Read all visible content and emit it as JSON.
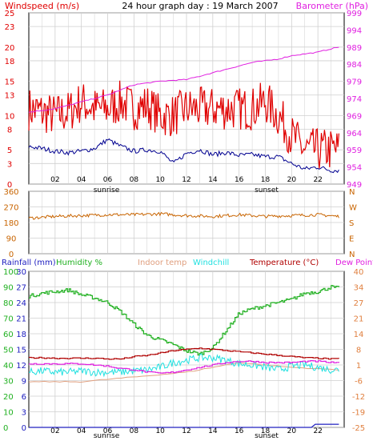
{
  "header": {
    "left": "Windspeed (m/s)",
    "center": "24 hour graph day : 19 March 2007",
    "right": "Barometer (hPa)"
  },
  "colors": {
    "wind": "#e00000",
    "barometer": "#e020e0",
    "gust_low": "#000090",
    "wind_dir": "#c86400",
    "rain": "#2020c0",
    "humidity": "#20b020",
    "indoor": "#e0a080",
    "windchill": "#20e0e0",
    "temperature": "#b00000",
    "dewpoint": "#e020e0",
    "grid": "#cfcfcf"
  },
  "x_ticks": [
    "02",
    "04",
    "06",
    "08",
    "10",
    "12",
    "14",
    "16",
    "18",
    "20",
    "22"
  ],
  "sun_labels": {
    "sunrise": "sunrise",
    "sunset": "sunset"
  },
  "legend3": {
    "rainfall": "Rainfall (mm)",
    "humidity": "Humidity %",
    "indoor": "Indoor temp",
    "windchill": "Windchill",
    "temperature": "Temperature (°C)",
    "dewpoint": "Dew Point"
  },
  "chart_data": [
    {
      "type": "line",
      "title": "24 hour graph day : 19 March 2007",
      "xlabel": "",
      "ylabel": "Windspeed (m/s)",
      "y2label": "Barometer (hPa)",
      "x_range": [
        0,
        24
      ],
      "ylim": [
        0,
        25
      ],
      "y2lim": [
        949,
        999
      ],
      "y_ticks": [
        0,
        3,
        5,
        8,
        10,
        13,
        15,
        18,
        20,
        23,
        25
      ],
      "y2_ticks": [
        949,
        954,
        959,
        964,
        969,
        974,
        979,
        984,
        989,
        994,
        999
      ],
      "series": [
        {
          "name": "Windspeed (m/s)",
          "axis": "left",
          "x": [
            0,
            1,
            2,
            3,
            4,
            5,
            6,
            7,
            8,
            9,
            10,
            11,
            12,
            13,
            14,
            15,
            16,
            17,
            18,
            19,
            20,
            21,
            22,
            23,
            23.6
          ],
          "values": [
            11,
            10.5,
            10,
            10.5,
            12,
            11,
            11,
            12,
            11,
            11.5,
            10,
            10,
            11,
            11,
            11,
            11,
            11,
            11,
            12,
            10,
            7,
            5,
            5,
            5,
            5
          ]
        },
        {
          "name": "",
          "axis": "left",
          "x": [
            0,
            1,
            2,
            3,
            4,
            5,
            6,
            7,
            8,
            9,
            10,
            11,
            12,
            13,
            14,
            15,
            16,
            17,
            18,
            19,
            20,
            21,
            22,
            23,
            23.6
          ],
          "values": [
            5.5,
            5.2,
            4.8,
            4.6,
            4.8,
            5.2,
            6.5,
            5.5,
            4.8,
            5,
            4.8,
            3,
            4.5,
            5,
            4.3,
            4.6,
            4.2,
            4.3,
            4,
            4,
            3,
            2.2,
            2.5,
            2,
            2
          ]
        },
        {
          "name": "Barometer (hPa)",
          "axis": "right",
          "x": [
            0,
            1,
            2,
            3,
            4,
            5,
            6,
            7,
            8,
            9,
            10,
            11,
            12,
            13,
            14,
            15,
            16,
            17,
            18,
            19,
            20,
            21,
            22,
            23,
            23.6
          ],
          "values": [
            970,
            970.5,
            971,
            972,
            973,
            974,
            975,
            976.5,
            978,
            978.5,
            979,
            979.3,
            979.5,
            980.5,
            981.5,
            982.5,
            983.5,
            984.5,
            985,
            985.5,
            986.5,
            987,
            987.5,
            988.5,
            989
          ]
        }
      ]
    },
    {
      "type": "line",
      "title": "",
      "ylabel": "",
      "x_range": [
        0,
        24
      ],
      "ylim": [
        0,
        360
      ],
      "y_ticks": [
        0,
        90,
        180,
        270,
        360
      ],
      "y2_ticks": [
        "N",
        "S",
        "E",
        "W",
        "N"
      ],
      "series": [
        {
          "name": "",
          "x": [
            0,
            2,
            4,
            6,
            8,
            10,
            12,
            14,
            16,
            18,
            20,
            22,
            23.6
          ],
          "values": [
            205,
            215,
            220,
            225,
            225,
            230,
            220,
            215,
            225,
            215,
            220,
            225,
            215
          ]
        }
      ]
    },
    {
      "type": "line",
      "title": "",
      "x_range": [
        0,
        24
      ],
      "ylim": [
        0,
        100
      ],
      "y_ticks_humidity": [
        0,
        10,
        20,
        30,
        40,
        50,
        60,
        70,
        80,
        90,
        100
      ],
      "y_ticks_rain": [
        0,
        3,
        6,
        9,
        12,
        15,
        18,
        21,
        24,
        27,
        30
      ],
      "y2_ticks_temp": [
        -25,
        -19,
        -12,
        -6,
        1,
        8,
        14,
        21,
        27,
        34,
        40
      ],
      "series": [
        {
          "name": "Humidity %",
          "axis": "humidity",
          "x": [
            0,
            1,
            2,
            3,
            4,
            5,
            6,
            7,
            8,
            9,
            10,
            11,
            12,
            13,
            14,
            15,
            16,
            17,
            18,
            19,
            20,
            21,
            22,
            23,
            23.6
          ],
          "values": [
            84,
            86,
            87,
            88,
            85,
            83,
            80,
            74,
            66,
            59,
            56,
            53,
            49,
            47,
            51,
            62,
            73,
            76,
            78,
            80,
            82,
            86,
            87,
            90,
            89
          ]
        },
        {
          "name": "Temperature (°C)",
          "axis": "temp",
          "x": [
            0,
            1,
            2,
            3,
            4,
            5,
            6,
            7,
            8,
            9,
            10,
            11,
            12,
            13,
            14,
            15,
            16,
            17,
            18,
            19,
            20,
            21,
            22,
            23,
            23.6
          ],
          "values": [
            4,
            4,
            3.8,
            3.8,
            3.8,
            3.8,
            3.5,
            3.5,
            4.5,
            5,
            6,
            7,
            7.5,
            8,
            7.5,
            7,
            6.5,
            6,
            5.5,
            5,
            4.5,
            4,
            3.8,
            3.5,
            3.5
          ]
        },
        {
          "name": "Windchill",
          "axis": "temp",
          "x": [
            0,
            1,
            2,
            3,
            4,
            5,
            6,
            7,
            8,
            9,
            10,
            11,
            12,
            13,
            14,
            15,
            16,
            17,
            18,
            19,
            20,
            21,
            22,
            23,
            23.6
          ],
          "values": [
            -2,
            -1.5,
            -2,
            -2,
            -1.5,
            -2,
            -2,
            -2,
            -1.5,
            -1,
            0,
            2,
            3,
            4,
            4,
            3,
            1.5,
            1,
            0,
            -1,
            0.5,
            1,
            0,
            -1,
            -1
          ]
        },
        {
          "name": "Dew Point",
          "axis": "temp",
          "x": [
            0,
            1,
            2,
            3,
            4,
            5,
            6,
            7,
            8,
            9,
            10,
            11,
            12,
            13,
            14,
            15,
            16,
            17,
            18,
            19,
            20,
            21,
            22,
            23,
            23.6
          ],
          "values": [
            1.5,
            1.5,
            1.5,
            1.5,
            1.5,
            1,
            0.5,
            -0.5,
            -1,
            -2,
            -2.5,
            -2,
            -1,
            0,
            1,
            2,
            2.5,
            2.5,
            2,
            2,
            2,
            2.5,
            2.5,
            2,
            2
          ]
        },
        {
          "name": "Indoor temp",
          "axis": "temp",
          "x": [
            0,
            4,
            8,
            12,
            16,
            20,
            23.6
          ],
          "values": [
            -6,
            -6,
            -4,
            -2,
            2,
            0,
            -1
          ]
        },
        {
          "name": "Rainfall (mm)",
          "axis": "rain",
          "x": [
            0,
            21.5,
            21.8,
            23.6
          ],
          "values": [
            0,
            0,
            0.6,
            0.6
          ]
        }
      ]
    }
  ]
}
